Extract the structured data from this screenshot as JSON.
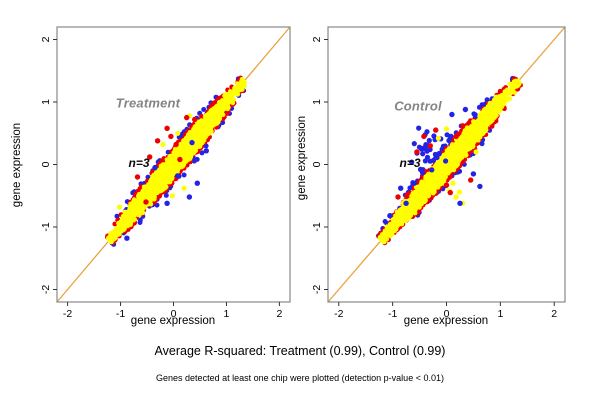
{
  "texts": {
    "title": "Average R-squared: Treatment (0.99), Control (0.99)",
    "caption": "Genes detected at least one chip were plotted (detection p-value < 0.01)"
  },
  "chart_data": {
    "type": "scatter",
    "xlabel": "gene expression",
    "ylabel": "gene expression",
    "axis_range": [
      -2.2,
      2.2
    ],
    "ticks": [
      -2,
      -1,
      0,
      1,
      2
    ],
    "grid": false,
    "legend": "none",
    "identity_line_color": "#E8A33D",
    "colors": {
      "yellow": "#FFFF00",
      "red": "#EE0000",
      "blue": "#2323E6",
      "box": "#888888",
      "tick": "#333333",
      "panel_label": "#848484"
    },
    "panels": [
      {
        "label": "Treatment",
        "n_label": "n=3",
        "r_squared": 0.99,
        "seed": 11,
        "cloud": {
          "t_mu": 0.0,
          "t_sd": 0.62,
          "t_min": -1.21,
          "t_max": 1.33,
          "t_center": 0.05,
          "length": 1.36,
          "half_width": 0.165,
          "end_floor": 0.18,
          "n_yellow": 2100,
          "n_red": 260,
          "n_blue": 85,
          "blue_up_frac": 0.5
        },
        "blue_cluster": null,
        "outliers": {
          "yellow": [
            [
              0.3,
              0.78
            ],
            [
              0.45,
              0.68
            ],
            [
              0.52,
              0.38
            ],
            [
              -0.2,
              0.32
            ],
            [
              -0.02,
              -0.5
            ],
            [
              0.2,
              -0.38
            ],
            [
              -1.02,
              -0.68
            ],
            [
              0.08,
              0.5
            ]
          ],
          "red": [
            [
              -0.45,
              0.12
            ],
            [
              -0.3,
              0.38
            ],
            [
              -0.12,
              0.58
            ],
            [
              0.05,
              0.32
            ],
            [
              0.25,
              0.75
            ],
            [
              0.4,
              0.72
            ],
            [
              -0.68,
              -0.2
            ],
            [
              -0.52,
              -0.6
            ],
            [
              0.12,
              0.08
            ],
            [
              -0.05,
              0.45
            ]
          ],
          "blue": [
            [
              -0.12,
              -0.62
            ],
            [
              0.3,
              -0.52
            ],
            [
              0.45,
              -0.3
            ],
            [
              0.62,
              0.22
            ],
            [
              0.08,
              -0.18
            ],
            [
              -0.88,
              -1.18
            ],
            [
              -0.35,
              -0.05
            ],
            [
              0.35,
              0.35
            ]
          ]
        }
      },
      {
        "label": "Control",
        "n_label": "n=3",
        "r_squared": 0.99,
        "seed": 29,
        "cloud": {
          "t_mu": 0.0,
          "t_sd": 0.62,
          "t_min": -1.21,
          "t_max": 1.33,
          "t_center": 0.05,
          "length": 1.36,
          "half_width": 0.165,
          "end_floor": 0.18,
          "n_yellow": 2100,
          "n_red": 260,
          "n_blue": 90,
          "blue_up_frac": 0.78
        },
        "blue_cluster": {
          "cx": -0.3,
          "cy": 0.32,
          "sd": 0.18,
          "count": 30
        },
        "outliers": {
          "yellow": [
            [
              -0.05,
              -0.3
            ],
            [
              0.05,
              -0.42
            ],
            [
              0.18,
              -0.52
            ],
            [
              0.3,
              -0.62
            ],
            [
              0.12,
              -0.3
            ],
            [
              0.24,
              -0.44
            ],
            [
              0.55,
              0.2
            ],
            [
              -0.15,
              0.42
            ],
            [
              0.0,
              0.57
            ]
          ],
          "red": [
            [
              -0.55,
              0.2
            ],
            [
              -0.42,
              0.45
            ],
            [
              0.0,
              -0.33
            ],
            [
              0.07,
              -0.45
            ],
            [
              0.45,
              -0.25
            ],
            [
              -0.2,
              0.55
            ],
            [
              0.3,
              0.62
            ],
            [
              -0.9,
              -0.52
            ],
            [
              -0.3,
              0.3
            ],
            [
              0.18,
              0.45
            ]
          ],
          "blue": [
            [
              -0.85,
              -0.38
            ],
            [
              -0.75,
              -0.62
            ],
            [
              0.5,
              -0.15
            ],
            [
              0.62,
              -0.35
            ],
            [
              0.25,
              -0.62
            ],
            [
              0.1,
              0.8
            ],
            [
              0.35,
              0.88
            ],
            [
              -1.05,
              -0.82
            ],
            [
              -0.48,
              -0.08
            ],
            [
              -0.6,
              -0.3
            ]
          ]
        }
      }
    ]
  }
}
